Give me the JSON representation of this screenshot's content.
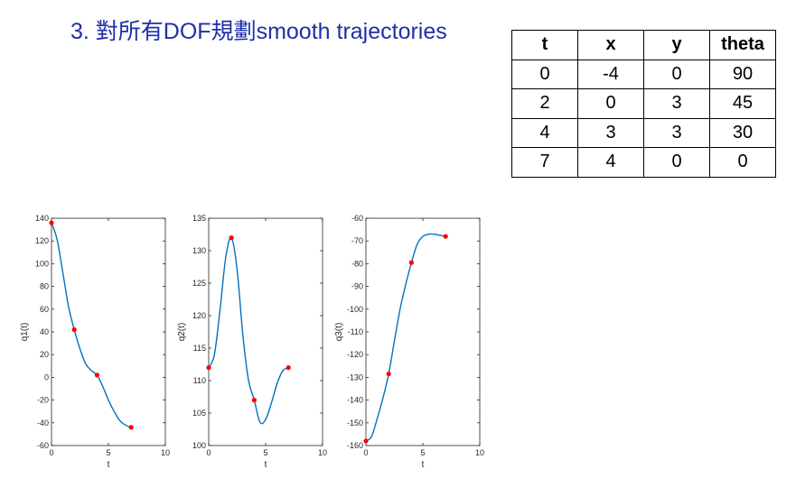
{
  "title": "3. 對所有DOF規劃smooth trajectories",
  "table": {
    "headers": [
      "t",
      "x",
      "y",
      "theta"
    ],
    "rows": [
      [
        "0",
        "-4",
        "0",
        "90"
      ],
      [
        "2",
        "0",
        "3",
        "45"
      ],
      [
        "4",
        "3",
        "3",
        "30"
      ],
      [
        "7",
        "4",
        "0",
        "0"
      ]
    ]
  },
  "colors": {
    "title": "#1f2fa8",
    "curve": "#0072bd",
    "marker": "#ff0000"
  },
  "chart_data": [
    {
      "type": "line",
      "ylabel": "q1(t)",
      "xlabel": "t",
      "xlim": [
        0,
        10
      ],
      "ylim": [
        -60,
        140
      ],
      "xticks": [
        0,
        5,
        10
      ],
      "yticks": [
        -60,
        -40,
        -20,
        0,
        20,
        40,
        60,
        80,
        100,
        120,
        140
      ],
      "grid": false,
      "curve": {
        "x": [
          0,
          0.5,
          1,
          1.5,
          2,
          2.5,
          3,
          3.5,
          4,
          4.5,
          5,
          5.5,
          6,
          6.5,
          7
        ],
        "y": [
          136,
          121,
          92,
          62,
          42,
          25,
          12,
          6,
          2,
          -8,
          -20,
          -30,
          -38,
          -42,
          -44
        ]
      },
      "waypoints": {
        "x": [
          0,
          2,
          4,
          7
        ],
        "y": [
          136,
          42,
          2,
          -44
        ]
      }
    },
    {
      "type": "line",
      "ylabel": "q2(t)",
      "xlabel": "t",
      "xlim": [
        0,
        10
      ],
      "ylim": [
        100,
        135
      ],
      "xticks": [
        0,
        5,
        10
      ],
      "yticks": [
        100,
        105,
        110,
        115,
        120,
        125,
        130,
        135
      ],
      "grid": false,
      "curve": {
        "x": [
          0,
          0.5,
          1,
          1.5,
          2,
          2.5,
          3,
          3.5,
          4,
          4.5,
          5,
          5.5,
          6,
          6.5,
          7
        ],
        "y": [
          112,
          114,
          121,
          129,
          132,
          127,
          117,
          110,
          107,
          103.6,
          104,
          106.5,
          109.5,
          111.5,
          112
        ]
      },
      "waypoints": {
        "x": [
          0,
          2,
          4,
          7
        ],
        "y": [
          112,
          132,
          107,
          112
        ]
      }
    },
    {
      "type": "line",
      "ylabel": "q3(t)",
      "xlabel": "t",
      "xlim": [
        0,
        10
      ],
      "ylim": [
        -160,
        -60
      ],
      "xticks": [
        0,
        5,
        10
      ],
      "yticks": [
        -160,
        -150,
        -140,
        -130,
        -120,
        -110,
        -100,
        -90,
        -80,
        -70,
        -60
      ],
      "grid": false,
      "curve": {
        "x": [
          0,
          0.5,
          1,
          1.5,
          2,
          2.5,
          3,
          3.5,
          4,
          4.5,
          5,
          5.5,
          6,
          6.5,
          7
        ],
        "y": [
          -158,
          -156,
          -148,
          -139,
          -128.5,
          -114,
          -100,
          -89,
          -79.5,
          -71.5,
          -68,
          -67,
          -67,
          -67.5,
          -68
        ]
      },
      "waypoints": {
        "x": [
          0,
          2,
          4,
          7
        ],
        "y": [
          -158,
          -128.5,
          -79.5,
          -68
        ]
      }
    }
  ]
}
